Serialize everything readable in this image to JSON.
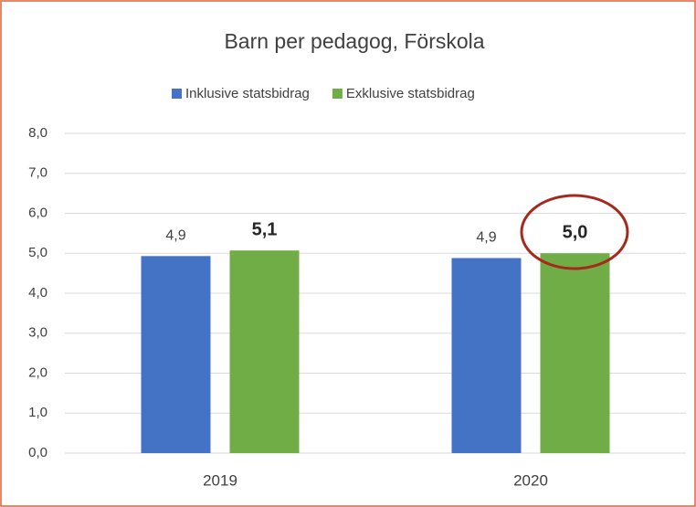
{
  "chart_data": {
    "type": "bar",
    "title": "Barn per pedagog, Förskola",
    "categories": [
      "2019",
      "2020"
    ],
    "series": [
      {
        "name": "Inklusive statsbidrag",
        "color": "#4472c4",
        "values": [
          4.93,
          4.88
        ],
        "value_labels": [
          "4,9",
          "4,9"
        ],
        "bold_labels": false
      },
      {
        "name": "Exklusive statsbidrag",
        "color": "#70ad47",
        "values": [
          5.07,
          5.0
        ],
        "value_labels": [
          "5,1",
          "5,0"
        ],
        "bold_labels": true
      }
    ],
    "ylim": [
      0,
      8
    ],
    "yticks": [
      {
        "value": 0,
        "label": "0,0"
      },
      {
        "value": 1,
        "label": "1,0"
      },
      {
        "value": 2,
        "label": "2,0"
      },
      {
        "value": 3,
        "label": "3,0"
      },
      {
        "value": 4,
        "label": "4,0"
      },
      {
        "value": 5,
        "label": "5,0"
      },
      {
        "value": 6,
        "label": "6,0"
      },
      {
        "value": 7,
        "label": "7,0"
      },
      {
        "value": 8,
        "label": "8,0"
      }
    ],
    "grid": true,
    "legend": "top"
  }
}
